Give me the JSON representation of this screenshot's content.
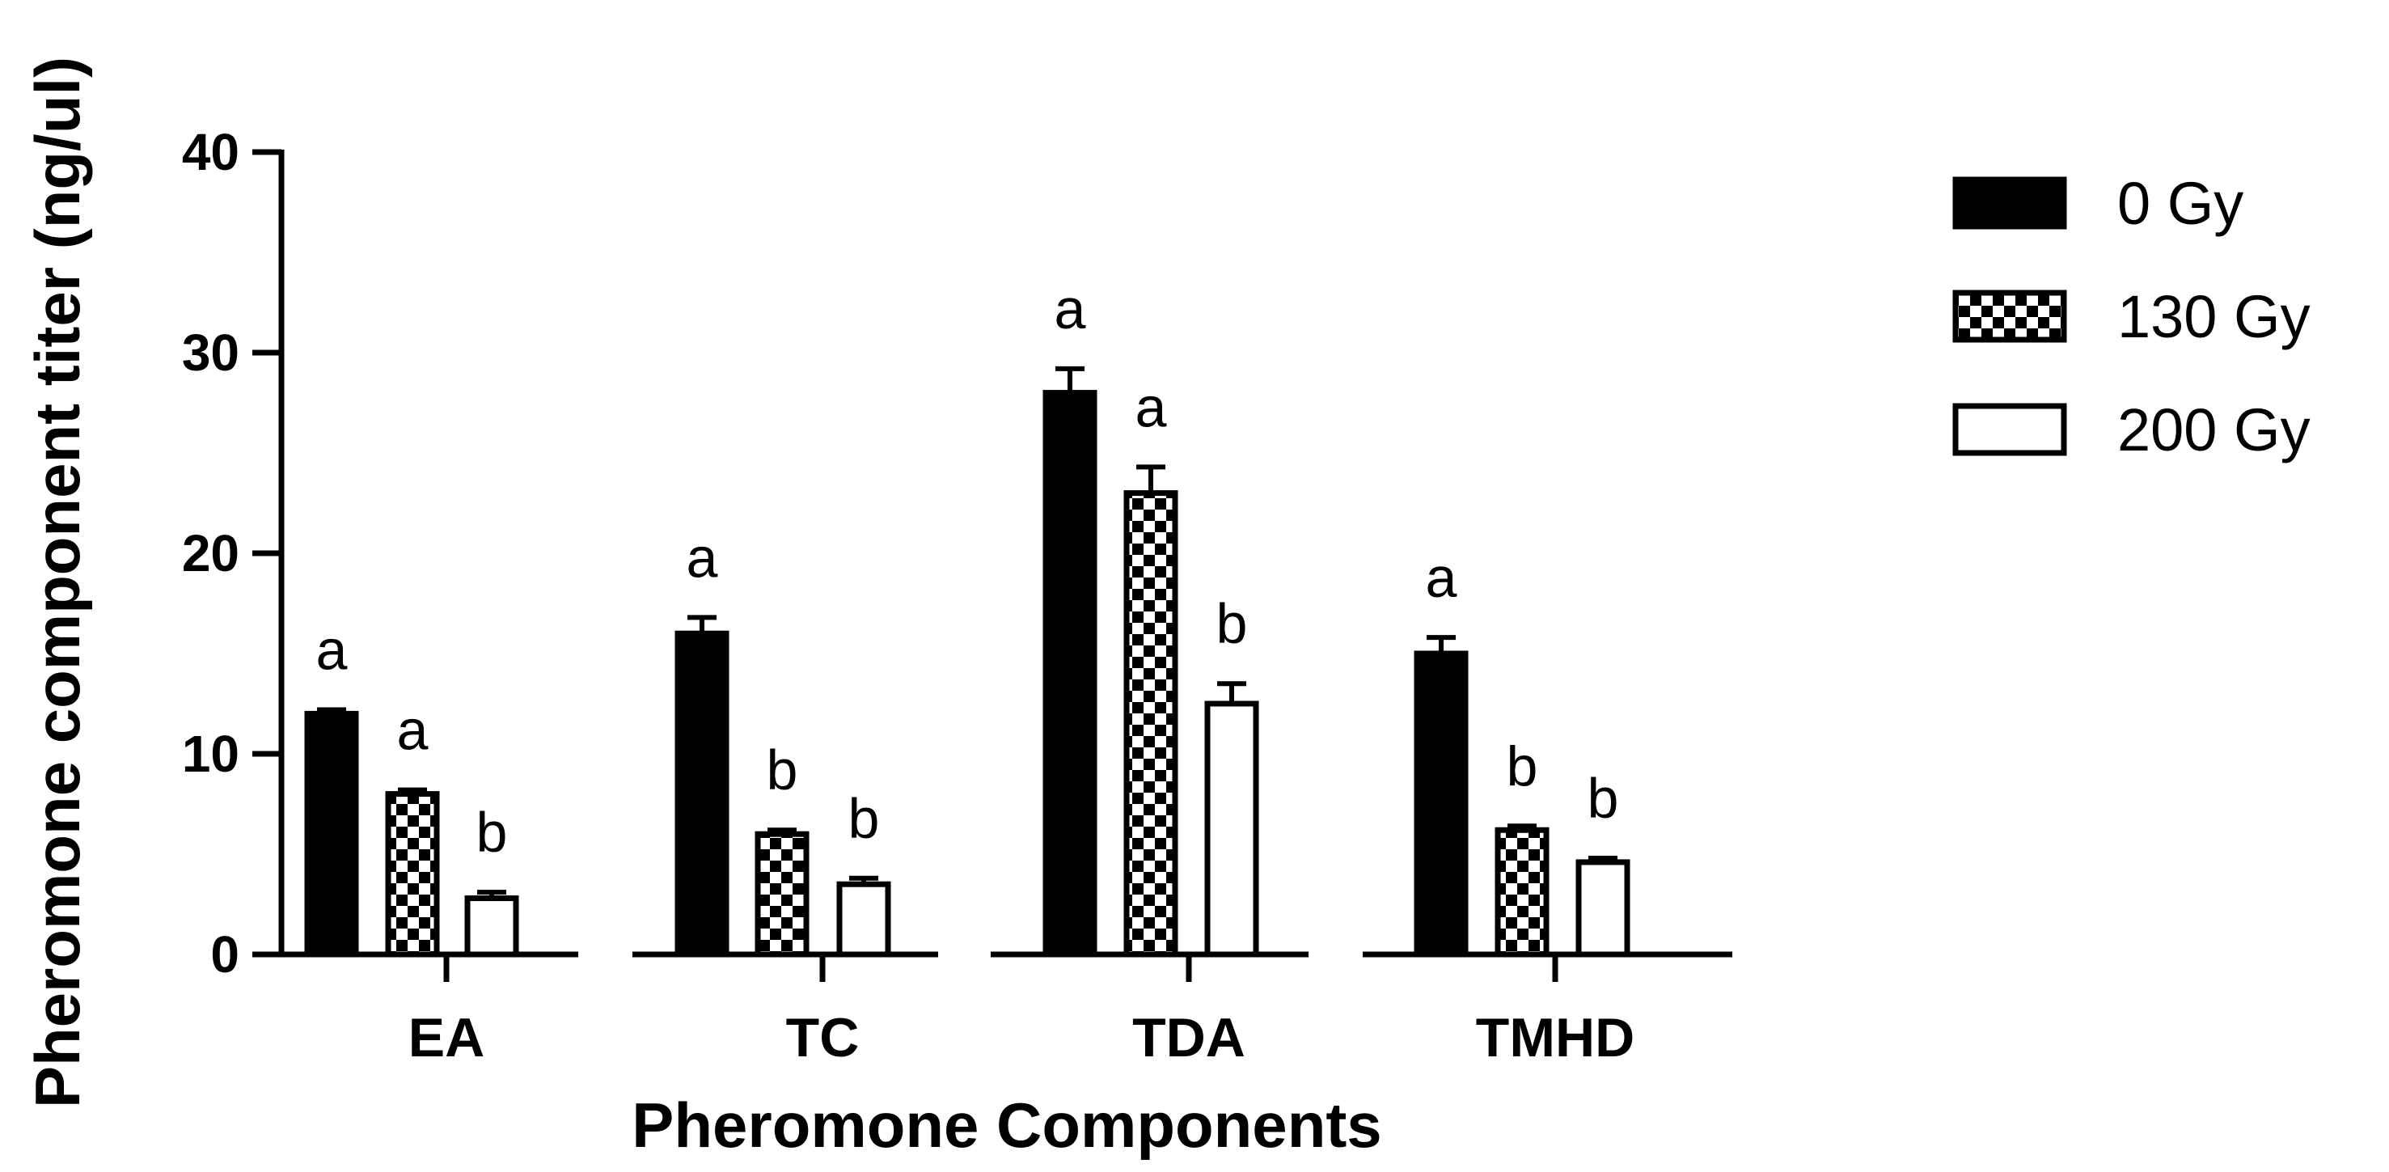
{
  "chart_data": {
    "type": "bar",
    "xlabel": "Pheromone Components",
    "ylabel": "Pheromone component titer (ng/ul)",
    "ylim": [
      0,
      40
    ],
    "yticks": [
      "0",
      "10",
      "20",
      "30",
      "40"
    ],
    "categories": [
      "EA",
      "TC",
      "TDA",
      "TMHD"
    ],
    "legend_position": "top-right",
    "series": [
      {
        "name": "0 Gy",
        "pattern": "solid",
        "color": "#000000",
        "values": [
          12,
          16,
          28,
          15
        ],
        "errors": [
          0.2,
          0.8,
          1.2,
          0.8
        ],
        "labels": [
          "a",
          "a",
          "a",
          "a"
        ]
      },
      {
        "name": "130 Gy",
        "pattern": "checker",
        "color": "#000000",
        "values": [
          8,
          6,
          23,
          6.2
        ],
        "errors": [
          0.2,
          0.2,
          1.3,
          0.2
        ],
        "labels": [
          "a",
          "b",
          "a",
          "b"
        ]
      },
      {
        "name": "200 Gy",
        "pattern": "open",
        "color": "#ffffff",
        "values": [
          2.8,
          3.5,
          12.5,
          4.6
        ],
        "errors": [
          0.3,
          0.3,
          1.0,
          0.2
        ],
        "labels": [
          "b",
          "b",
          "b",
          "b"
        ]
      }
    ]
  }
}
